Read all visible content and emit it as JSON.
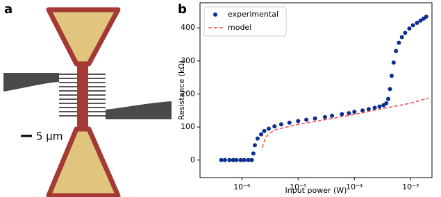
{
  "panel_labels": [
    "a",
    "b"
  ],
  "scale_bar": "5 µm",
  "chart_data": {
    "type": "scatter",
    "xlabel": "Input power (W)",
    "ylabel": "Resistance (kΩ)",
    "xlog": true,
    "xlim": [
      1.8e-07,
      0.0024
    ],
    "ylim": [
      -53,
      476
    ],
    "xticks": [
      {
        "value": 1e-06,
        "label": "10⁻⁶"
      },
      {
        "value": 1e-05,
        "label": "10⁻⁵"
      },
      {
        "value": 0.0001,
        "label": "10⁻⁴"
      },
      {
        "value": 0.001,
        "label": "10⁻³"
      }
    ],
    "yticks": [
      0,
      100,
      200,
      300,
      400
    ],
    "legend": "upper left",
    "series": [
      {
        "name": "experimental",
        "color": "#0b2d8f",
        "style": "points",
        "x": [
          4.3e-07,
          5e-07,
          6e-07,
          7e-07,
          8e-07,
          9.5e-07,
          1.1e-06,
          1.3e-06,
          1.5e-06,
          1.6e-06,
          1.7e-06,
          1.9e-06,
          2.2e-06,
          2.5e-06,
          3e-06,
          3.8e-06,
          5e-06,
          7e-06,
          1e-05,
          1.4e-05,
          2e-05,
          3e-05,
          4e-05,
          6e-05,
          8e-05,
          0.0001,
          0.00014,
          0.00018,
          0.00023,
          0.00028,
          0.00033,
          0.00037,
          0.0004,
          0.00043,
          0.00046,
          0.0005,
          0.00055,
          0.00062,
          0.0007,
          0.0008,
          0.00095,
          0.0011,
          0.0013,
          0.0015,
          0.0017,
          0.0019
        ],
        "values": [
          0,
          0,
          0,
          0,
          0,
          0,
          0,
          0,
          0,
          20,
          45,
          65,
          78,
          88,
          95,
          102,
          108,
          113,
          118,
          122,
          126,
          130,
          134,
          139,
          142,
          146,
          150,
          154,
          158,
          162,
          166,
          172,
          185,
          215,
          255,
          295,
          330,
          355,
          372,
          385,
          398,
          408,
          415,
          422,
          428,
          434
        ]
      },
      {
        "name": "model",
        "color": "#f05050",
        "style": "dashed",
        "x": [
          2.3e-06,
          2.6e-06,
          3e-06,
          4e-06,
          1e-05,
          3e-05,
          0.0001,
          0.0003,
          0.001,
          0.0021
        ],
        "values": [
          38,
          65,
          80,
          92,
          108,
          122,
          138,
          155,
          172,
          188
        ]
      }
    ]
  }
}
